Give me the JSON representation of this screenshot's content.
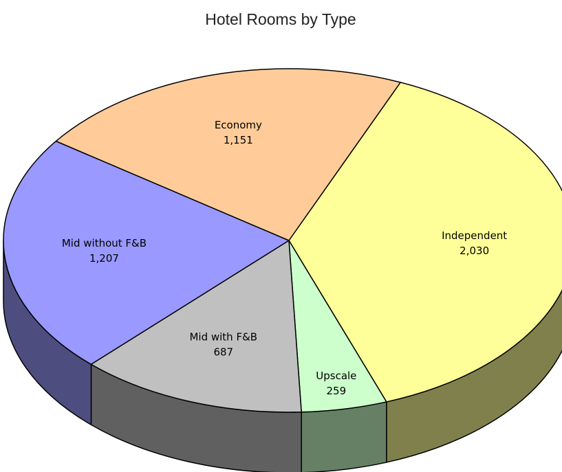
{
  "chart_data": {
    "type": "pie",
    "title": "Hotel Rooms by Type",
    "categories": [
      "Independent",
      "Upscale",
      "Mid with F&B",
      "Mid without F&B",
      "Economy"
    ],
    "values": [
      2030,
      259,
      687,
      1207,
      1151
    ],
    "value_labels": [
      "2,030",
      "259",
      "687",
      "1,207",
      "1,151"
    ],
    "colors": [
      "#ffff99",
      "#ccffcc",
      "#c0c0c0",
      "#9999ff",
      "#ffcc99"
    ]
  }
}
